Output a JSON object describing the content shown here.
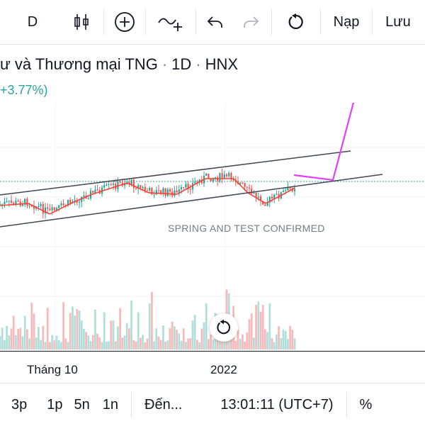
{
  "toolbar": {
    "interval_label": "D",
    "load_label": "Nạp",
    "save_label": "Lưu",
    "icons": [
      "candles-icon",
      "add-indicator-icon",
      "compare-icon",
      "undo-icon",
      "redo-icon",
      "reset-icon"
    ]
  },
  "header": {
    "symbol_title": "ư và Thương mại TNG",
    "interval": "1D",
    "exchange": "HNX",
    "change": "+3.77%)"
  },
  "annotation": "SPRING AND TEST CONFIRMED",
  "xaxis": {
    "labels": [
      "Tháng 10",
      "2022"
    ]
  },
  "bottombar": {
    "ranges": [
      "3p",
      "1p",
      "5n",
      "1n"
    ],
    "goto_label": "Đến...",
    "clock": "13:01:11 (UTC+7)",
    "percent_label": "%"
  },
  "colors": {
    "up": "#26a69a",
    "down": "#ef5350",
    "ma": "#f44336",
    "drawing": "#e040fb",
    "channel": "#434651"
  }
}
